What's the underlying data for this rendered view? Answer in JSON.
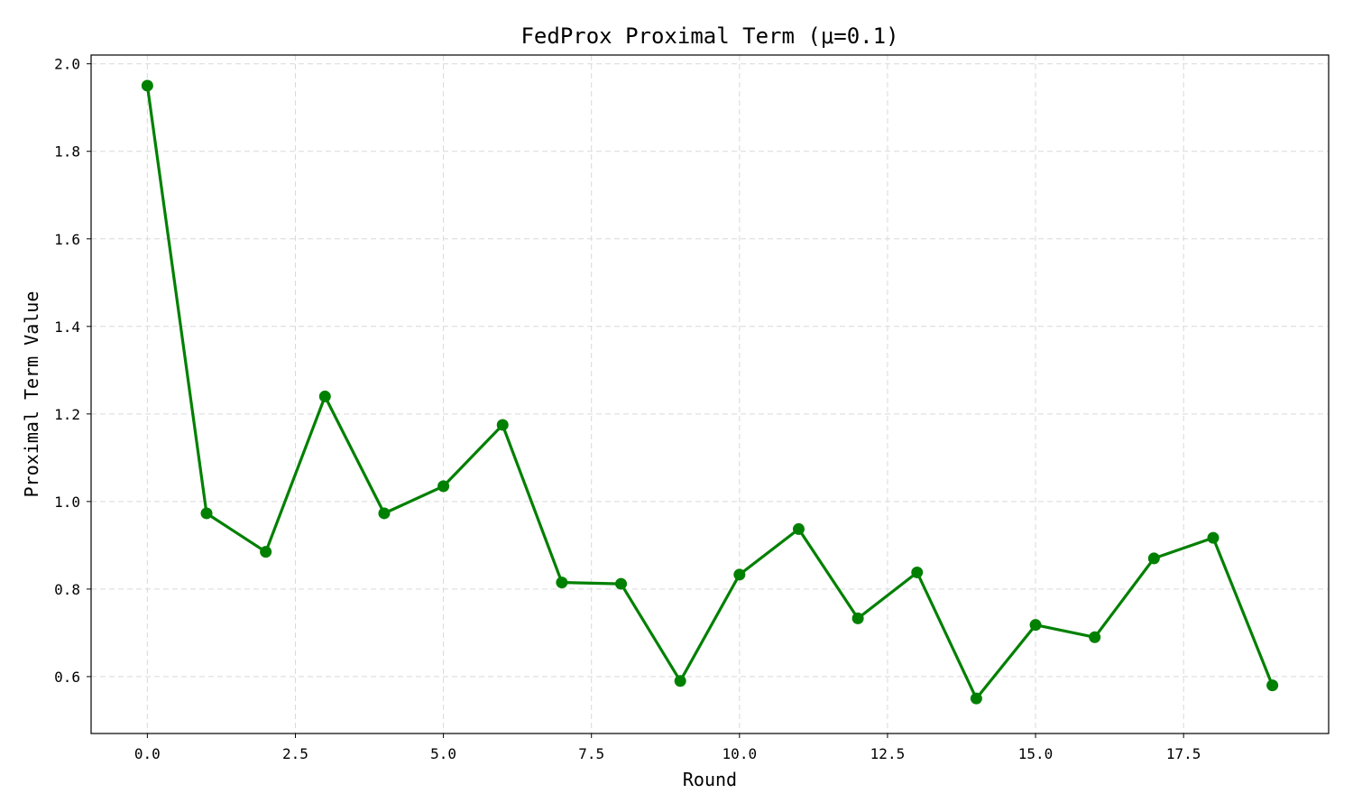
{
  "chart_data": {
    "type": "line",
    "title": "FedProx Proximal Term (μ=0.1)",
    "xlabel": "Round",
    "ylabel": "Proximal Term Value",
    "xlim": [
      -0.95,
      19.95
    ],
    "ylim": [
      0.47,
      2.02
    ],
    "xticks": [
      0,
      2.5,
      5,
      7.5,
      10,
      12.5,
      15,
      17.5
    ],
    "xtick_labels": [
      "0.0",
      "2.5",
      "5.0",
      "7.5",
      "10.0",
      "12.5",
      "15.0",
      "17.5"
    ],
    "yticks": [
      0.6,
      0.8,
      1.0,
      1.2,
      1.4,
      1.6,
      1.8,
      2.0
    ],
    "ytick_labels": [
      "0.6",
      "0.8",
      "1.0",
      "1.2",
      "1.4",
      "1.6",
      "1.8",
      "2.0"
    ],
    "grid": true,
    "series": [
      {
        "color": "#008000",
        "marker": "circle",
        "x": [
          0,
          1,
          2,
          3,
          4,
          5,
          6,
          7,
          8,
          9,
          10,
          11,
          12,
          13,
          14,
          15,
          16,
          17,
          18,
          19
        ],
        "values": [
          1.95,
          0.973,
          0.885,
          1.24,
          0.973,
          1.035,
          1.175,
          0.815,
          0.812,
          0.59,
          0.833,
          0.937,
          0.733,
          0.838,
          0.55,
          0.718,
          0.69,
          0.87,
          0.917,
          0.58
        ]
      }
    ]
  }
}
